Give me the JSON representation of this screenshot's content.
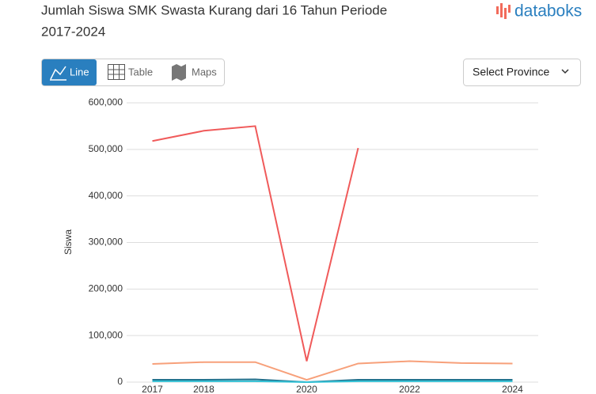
{
  "ui": {
    "logo": "databoks",
    "buttons": [
      "Line",
      "Table",
      "Maps"
    ],
    "select": "Select Province"
  },
  "chart_data": {
    "type": "line",
    "title": "Jumlah Siswa SMK Swasta Kurang dari 16 Tahun Periode",
    "subtitle": "2017-2024",
    "y_label": "Siswa",
    "x": [
      2017,
      2018,
      2019,
      2020,
      2021,
      2022,
      2023,
      2024
    ],
    "xlim": [
      2016.5,
      2024.5
    ],
    "xticks": [
      2017,
      2018,
      2020,
      2022,
      2024
    ],
    "ylim": [
      0,
      600000
    ],
    "yticks": [
      0,
      {
        "value": 100000,
        "label": "100,000"
      },
      {
        "value": 200000,
        "label": "200,000"
      },
      {
        "value": 300000,
        "label": "300,000"
      },
      {
        "value": 400000,
        "label": "400,000"
      },
      {
        "value": 500000,
        "label": "500,000"
      },
      {
        "value": 600000,
        "label": "600,000"
      }
    ],
    "grid": true,
    "series": [
      {
        "color": "#f05a5a",
        "values": [
          518000,
          540000,
          550000,
          45000,
          503000,
          null,
          null,
          null
        ]
      },
      {
        "color": "#f7a07a",
        "values": [
          39000,
          43000,
          43000,
          5000,
          40000,
          45000,
          41000,
          40000
        ]
      },
      {
        "color": "#1f6f8b",
        "values": [
          5000,
          5000,
          6000,
          0,
          5000,
          5000,
          5000,
          5000
        ]
      },
      {
        "color": "#33c2d6",
        "values": [
          2000,
          2000,
          2000,
          0,
          2000,
          2000,
          2000,
          2000
        ]
      }
    ]
  }
}
